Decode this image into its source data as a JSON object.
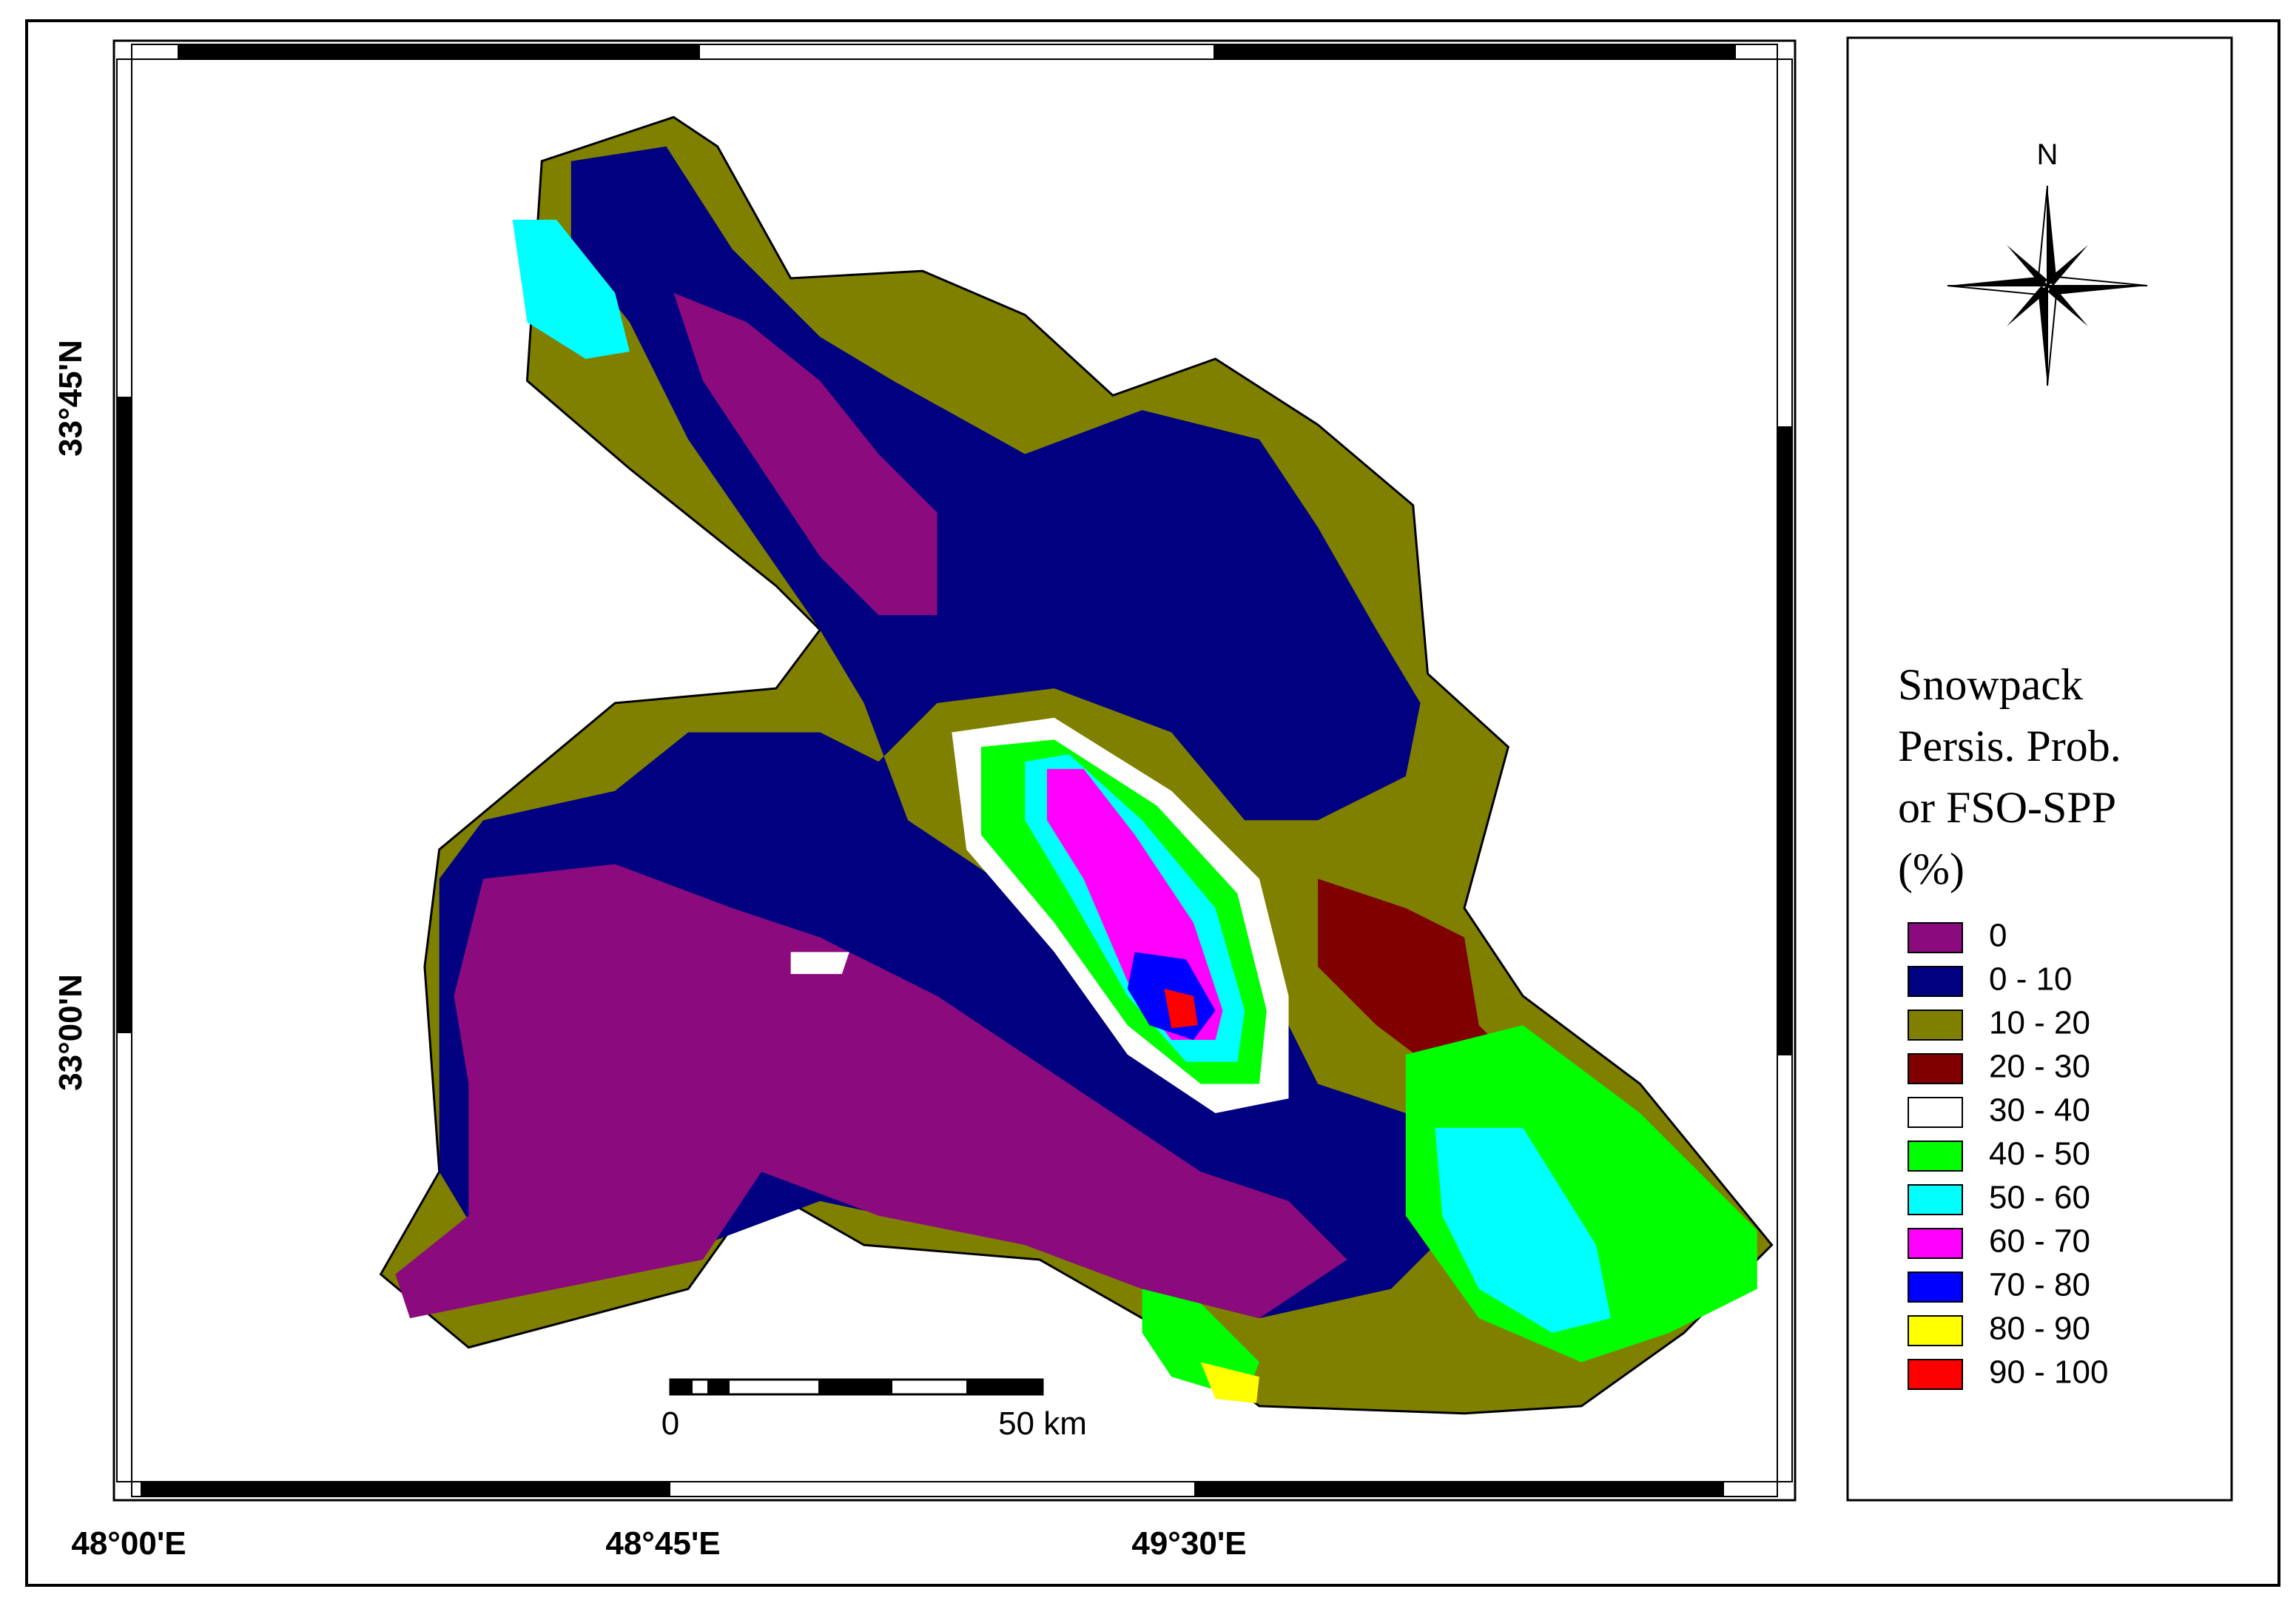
{
  "map": {
    "coordinates": {
      "x": [
        "48°00'E",
        "48°45'E",
        "49°30'E"
      ],
      "y": [
        "33°45'N",
        "33°00'N"
      ]
    },
    "north": "N",
    "scale_bar": {
      "start": "0",
      "end": "50 km"
    },
    "legend": {
      "title": [
        "Snowpack",
        "Persis. Prob.",
        "or FSO-SPP",
        "(%)"
      ],
      "items": [
        {
          "label": "0",
          "color": "#8b0a7e"
        },
        {
          "label": "0 - 10",
          "color": "#000080"
        },
        {
          "label": "10 - 20",
          "color": "#808000"
        },
        {
          "label": "20 - 30",
          "color": "#800000"
        },
        {
          "label": "30 - 40",
          "color": "#ffffff"
        },
        {
          "label": "40 - 50",
          "color": "#00ff00"
        },
        {
          "label": "50 - 60",
          "color": "#00ffff"
        },
        {
          "label": "60 - 70",
          "color": "#ff00ff"
        },
        {
          "label": "70 - 80",
          "color": "#0000ff"
        },
        {
          "label": "80 - 90",
          "color": "#ffff00"
        },
        {
          "label": "90 - 100",
          "color": "#ff0000"
        }
      ]
    }
  }
}
